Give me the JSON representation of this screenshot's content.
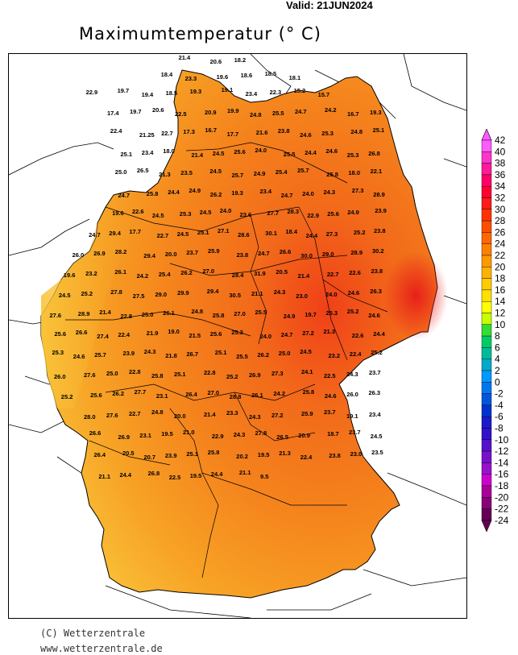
{
  "header": {
    "valid": "Valid: 21JUN2024",
    "title": "Maximumtemperatur (° C)"
  },
  "footer": {
    "copyright": "(C) Wetterzentrale",
    "url": "www.wetterzentrale.de"
  },
  "legend": {
    "levels": [
      "42",
      "40",
      "38",
      "36",
      "34",
      "32",
      "30",
      "28",
      "26",
      "24",
      "22",
      "20",
      "18",
      "16",
      "14",
      "12",
      "10",
      "8",
      "6",
      "4",
      "2",
      "0",
      "-2",
      "-4",
      "-6",
      "-8",
      "-10",
      "-12",
      "-14",
      "-16",
      "-18",
      "-20",
      "-22",
      "-24"
    ],
    "colors": [
      "#ff5aff",
      "#ff33cc",
      "#ff1a99",
      "#ff0066",
      "#ff0033",
      "#ff1a1a",
      "#ff3300",
      "#ff4d00",
      "#ff6600",
      "#ff8000",
      "#ff9900",
      "#ffb300",
      "#ffcc00",
      "#ffe000",
      "#ffff00",
      "#c8ff00",
      "#33dd33",
      "#00cc66",
      "#00bb99",
      "#00aacc",
      "#0099ff",
      "#0077ee",
      "#0055dd",
      "#0033cc",
      "#1a1acc",
      "#3311cc",
      "#5511cc",
      "#7711cc",
      "#9911cc",
      "#cc00cc",
      "#aa0099",
      "#880077",
      "#660055"
    ]
  },
  "map": {
    "values": [
      "21.4",
      "20.6",
      "18.2",
      "18.4",
      "23.3",
      "19.6",
      "18.6",
      "18.5",
      "18.1",
      "22.9",
      "19.7",
      "19.4",
      "18.5",
      "19.3",
      "19.1",
      "23.4",
      "22.3",
      "15.2",
      "15.7",
      "17.4",
      "19.7",
      "20.6",
      "22.5",
      "20.9",
      "19.9",
      "24.8",
      "25.5",
      "24.7",
      "24.2",
      "16.7",
      "19.3",
      "22.4",
      "21.25",
      "22.7",
      "17.3",
      "16.7",
      "17.7",
      "21.6",
      "23.8",
      "24.6",
      "25.3",
      "24.8",
      "25.1",
      "25.1",
      "23.4",
      "18.0",
      "21.4",
      "24.5",
      "25.6",
      "24.0",
      "25.5",
      "24.4",
      "24.6",
      "25.3",
      "26.8",
      "25.0",
      "26.5",
      "21.3",
      "23.5",
      "24.5",
      "25.7",
      "24.9",
      "25.4",
      "25.7",
      "25.8",
      "18.0",
      "22.1",
      "24.7",
      "25.8",
      "24.4",
      "24.9",
      "26.2",
      "19.3",
      "23.4",
      "24.7",
      "24.0",
      "24.3",
      "27.3",
      "28.9",
      "19.6",
      "22.6",
      "24.5",
      "25.3",
      "24.5",
      "24.0",
      "23.6",
      "27.7",
      "28.3",
      "22.9",
      "25.6",
      "24.9",
      "23.9",
      "24.7",
      "29.4",
      "17.7",
      "22.7",
      "24.5",
      "25.1",
      "27.1",
      "28.6",
      "30.1",
      "18.4",
      "24.4",
      "27.3",
      "25.2",
      "23.8",
      "26.0",
      "26.9",
      "28.2",
      "29.4",
      "20.0",
      "23.7",
      "25.9",
      "23.8",
      "24.7",
      "26.6",
      "30.0",
      "29.0",
      "28.9",
      "30.2",
      "19.6",
      "23.2",
      "26.1",
      "24.2",
      "25.4",
      "26.2",
      "27.0",
      "28.4",
      "31.9",
      "20.5",
      "21.4",
      "22.7",
      "22.6",
      "23.8",
      "24.5",
      "25.2",
      "27.8",
      "27.5",
      "29.0",
      "29.9",
      "29.4",
      "30.5",
      "21.1",
      "24.3",
      "23.0",
      "24.0",
      "24.6",
      "26.3",
      "27.6",
      "28.9",
      "21.4",
      "22.8",
      "25.0",
      "26.1",
      "24.8",
      "25.8",
      "27.0",
      "25.5",
      "24.9",
      "19.7",
      "25.3",
      "25.2",
      "24.6",
      "25.6",
      "26.6",
      "27.4",
      "22.4",
      "21.9",
      "19.0",
      "21.5",
      "25.6",
      "25.3",
      "24.0",
      "24.7",
      "27.2",
      "21.3",
      "22.6",
      "24.4",
      "25.3",
      "24.6",
      "25.7",
      "23.9",
      "24.3",
      "21.8",
      "26.7",
      "25.1",
      "25.5",
      "26.2",
      "25.0",
      "24.5",
      "23.2",
      "22.4",
      "25.2",
      "26.0",
      "27.6",
      "25.0",
      "22.8",
      "25.8",
      "25.1",
      "22.8",
      "25.2",
      "26.9",
      "27.3",
      "24.1",
      "22.5",
      "24.3",
      "23.7",
      "25.2",
      "25.6",
      "26.2",
      "27.7",
      "23.1",
      "26.4",
      "27.0",
      "28.8",
      "26.1",
      "24.2",
      "25.8",
      "24.6",
      "26.0",
      "26.3",
      "28.0",
      "27.6",
      "22.7",
      "24.8",
      "20.0",
      "21.4",
      "23.3",
      "24.3",
      "27.2",
      "25.9",
      "23.7",
      "19.1",
      "23.4",
      "26.6",
      "26.9",
      "23.1",
      "19.5",
      "21.0",
      "22.9",
      "24.3",
      "27.8",
      "26.5",
      "20.9",
      "18.7",
      "23.7",
      "24.5",
      "26.4",
      "20.5",
      "20.7",
      "23.9",
      "25.1",
      "25.8",
      "20.2",
      "19.5",
      "21.3",
      "22.4",
      "23.8",
      "23.0",
      "23.5",
      "21.1",
      "24.4",
      "26.8",
      "22.5",
      "19.5",
      "24.4",
      "21.1",
      "9.5"
    ]
  }
}
